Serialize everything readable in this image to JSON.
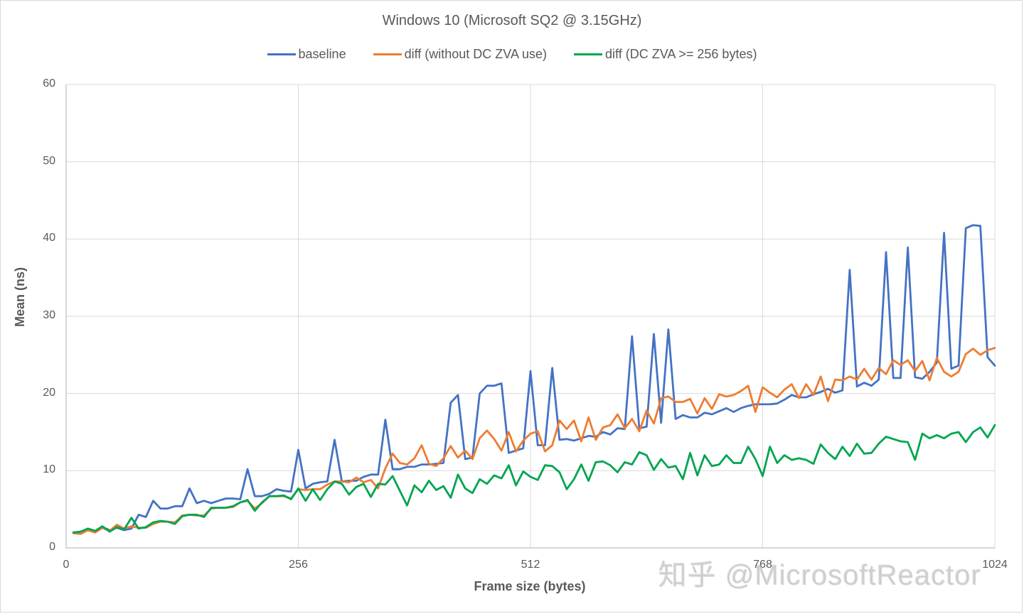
{
  "chart_data": {
    "type": "line",
    "title": "Windows 10 (Microsoft SQ2 @ 3.15GHz)",
    "xlabel": "Frame size (bytes)",
    "ylabel": "Mean (ns)",
    "xlim": [
      0,
      1024
    ],
    "ylim": [
      0,
      60
    ],
    "x_ticks": [
      0,
      256,
      512,
      768,
      1024
    ],
    "x_tick_labels": [
      "0",
      "256",
      "512",
      "768",
      "1024"
    ],
    "y_ticks": [
      0,
      10,
      20,
      30,
      40,
      50,
      60
    ],
    "y_tick_labels": [
      "0",
      "10",
      "20",
      "30",
      "40",
      "50",
      "60"
    ],
    "grid": true,
    "legend_position": "top",
    "x_step": 8,
    "x_start": 8,
    "series": [
      {
        "name": "baseline",
        "color": "#4472C4",
        "values": [
          2.0,
          2.1,
          2.4,
          2.2,
          2.7,
          2.3,
          2.6,
          2.3,
          2.5,
          4.3,
          4.0,
          6.1,
          5.1,
          5.1,
          5.4,
          5.4,
          7.7,
          5.8,
          6.1,
          5.8,
          6.1,
          6.4,
          6.4,
          6.3,
          10.2,
          6.7,
          6.7,
          7.0,
          7.6,
          7.4,
          7.3,
          12.7,
          7.7,
          8.3,
          8.5,
          8.6,
          14.0,
          8.6,
          8.7,
          8.7,
          9.2,
          9.5,
          9.5,
          16.6,
          10.2,
          10.2,
          10.5,
          10.5,
          10.8,
          10.8,
          10.9,
          11.0,
          18.8,
          19.8,
          11.5,
          11.7,
          20.0,
          21.0,
          21.0,
          21.3,
          12.3,
          12.6,
          12.9,
          22.9,
          13.3,
          13.3,
          23.3,
          14.0,
          14.1,
          13.9,
          14.2,
          14.5,
          14.4,
          15.0,
          14.7,
          15.5,
          15.4,
          27.4,
          15.5,
          15.7,
          27.7,
          16.2,
          28.3,
          16.7,
          17.2,
          16.9,
          16.9,
          17.5,
          17.3,
          17.7,
          18.1,
          17.6,
          18.1,
          18.4,
          18.6,
          18.6,
          18.6,
          18.7,
          19.2,
          19.8,
          19.5,
          19.5,
          19.9,
          20.2,
          20.6,
          20.1,
          20.4,
          36.0,
          20.9,
          21.4,
          21.0,
          21.8,
          38.3,
          22.0,
          22.0,
          38.9,
          22.1,
          21.9,
          22.8,
          24.0,
          40.8,
          23.2,
          23.6,
          41.4,
          41.8,
          41.7,
          24.7,
          23.6
        ]
      },
      {
        "name": "diff (without DC ZVA use)",
        "color": "#ED7D31",
        "values": [
          1.9,
          1.8,
          2.3,
          2.0,
          2.6,
          2.2,
          3.0,
          2.5,
          2.8,
          2.6,
          2.6,
          3.1,
          3.4,
          3.4,
          3.3,
          4.2,
          4.3,
          4.2,
          4.2,
          5.1,
          5.2,
          5.2,
          5.3,
          5.9,
          6.1,
          5.1,
          5.8,
          6.7,
          6.7,
          6.7,
          6.4,
          7.6,
          7.5,
          7.6,
          7.6,
          8.2,
          8.6,
          8.6,
          8.5,
          9.1,
          8.5,
          8.8,
          7.7,
          10.3,
          12.2,
          11.0,
          10.8,
          11.6,
          13.3,
          10.9,
          10.6,
          11.6,
          13.2,
          11.7,
          12.6,
          11.5,
          14.2,
          15.2,
          14.1,
          12.6,
          15.0,
          12.5,
          13.9,
          14.8,
          15.1,
          12.5,
          13.3,
          16.5,
          15.4,
          16.5,
          13.8,
          16.9,
          14.0,
          15.6,
          15.9,
          17.3,
          15.5,
          16.7,
          15.1,
          17.8,
          16.1,
          19.4,
          19.6,
          18.9,
          18.9,
          19.3,
          17.4,
          19.4,
          18.0,
          19.9,
          19.6,
          19.8,
          20.3,
          21.0,
          17.6,
          20.8,
          20.1,
          19.5,
          20.5,
          21.2,
          19.4,
          21.2,
          19.8,
          22.2,
          19.0,
          21.8,
          21.7,
          22.2,
          21.8,
          23.2,
          21.8,
          23.3,
          22.5,
          24.3,
          23.7,
          24.3,
          22.9,
          24.2,
          21.7,
          24.6,
          22.8,
          22.2,
          22.8,
          25.1,
          25.8,
          25.0,
          25.6,
          25.9
        ]
      },
      {
        "name": "diff (DC ZVA >= 256 bytes)",
        "color": "#00A550",
        "values": [
          2.0,
          2.1,
          2.5,
          2.2,
          2.8,
          2.1,
          2.7,
          2.4,
          3.9,
          2.5,
          2.7,
          3.3,
          3.5,
          3.4,
          3.1,
          4.1,
          4.3,
          4.3,
          4.0,
          5.2,
          5.2,
          5.2,
          5.4,
          5.9,
          6.2,
          4.8,
          5.9,
          6.7,
          6.7,
          6.8,
          6.3,
          7.7,
          6.1,
          7.6,
          6.2,
          7.6,
          8.6,
          8.3,
          6.9,
          7.9,
          8.3,
          6.6,
          8.3,
          8.2,
          9.3,
          7.4,
          5.5,
          8.1,
          7.2,
          8.7,
          7.5,
          8.0,
          6.5,
          9.5,
          7.7,
          7.1,
          8.9,
          8.3,
          9.4,
          9.0,
          10.7,
          8.1,
          9.9,
          9.2,
          8.8,
          10.7,
          10.6,
          9.8,
          7.6,
          8.9,
          10.8,
          8.7,
          11.1,
          11.2,
          10.7,
          9.8,
          11.1,
          10.8,
          12.4,
          12.0,
          10.1,
          11.5,
          10.4,
          10.6,
          8.9,
          12.3,
          9.4,
          12.0,
          10.6,
          10.8,
          12.0,
          11.0,
          11.0,
          13.1,
          11.5,
          9.3,
          13.1,
          11.0,
          12.0,
          11.4,
          11.6,
          11.4,
          10.9,
          13.4,
          12.3,
          11.5,
          13.1,
          11.9,
          13.5,
          12.2,
          12.3,
          13.5,
          14.4,
          14.1,
          13.8,
          13.7,
          11.4,
          14.8,
          14.2,
          14.6,
          14.2,
          14.8,
          15.0,
          13.7,
          15.0,
          15.6,
          14.3,
          15.9
        ]
      }
    ]
  },
  "watermark": "知乎 @MicrosoftReactor"
}
